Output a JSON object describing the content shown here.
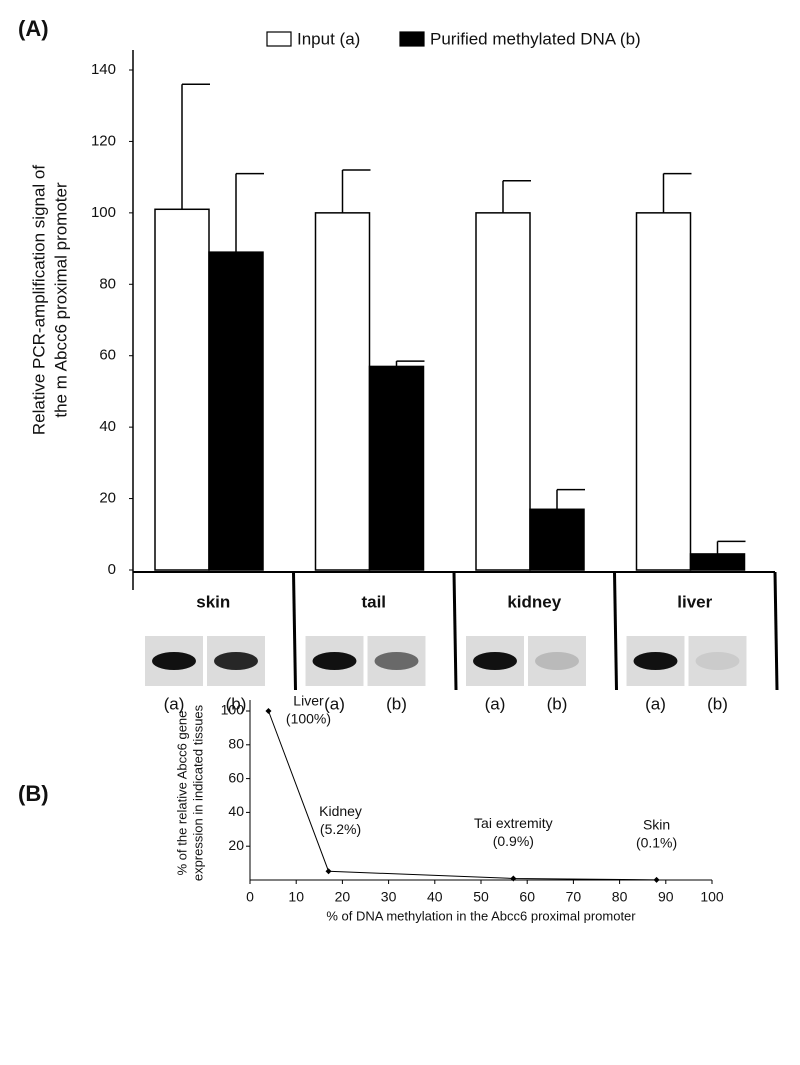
{
  "chart_data": [
    {
      "type": "bar",
      "panel_label": "(A)",
      "ylabel": [
        "Relative PCR-amplification signal of",
        "the m Abcc6 proximal promoter"
      ],
      "categories": [
        "skin",
        "tail",
        "kidney",
        "liver"
      ],
      "series": [
        {
          "name": "Input (a)",
          "color": "#ffffff",
          "values": [
            101,
            100,
            100,
            100
          ],
          "errors": [
            35,
            12,
            9,
            11
          ]
        },
        {
          "name": "Purified methylated DNA (b)",
          "color": "#000000",
          "values": [
            89,
            57,
            17,
            4.5
          ],
          "errors": [
            22,
            1.5,
            5.5,
            3.5
          ]
        }
      ],
      "gel_labels": [
        "(a)",
        "(b)"
      ],
      "ylim": [
        0,
        140
      ],
      "yticks": [
        0,
        20,
        40,
        60,
        80,
        100,
        120,
        140
      ]
    },
    {
      "type": "line",
      "panel_label": "(B)",
      "ylabel": [
        "% of the relative Abcc6 gene",
        "expression in indicated tissues"
      ],
      "xlabel": "% of DNA methylation in the Abcc6 proximal promoter",
      "x": [
        4,
        17,
        57,
        88
      ],
      "values": [
        100,
        5.2,
        0.9,
        0.1
      ],
      "point_names": [
        "Liver",
        "Kidney",
        "Tai extremity",
        "Skin"
      ],
      "value_labels": [
        "(100%)",
        "(5.2%)",
        "(0.9%)",
        "(0.1%)"
      ],
      "color": "#000000",
      "xlim": [
        0,
        100
      ],
      "xticks": [
        0,
        10,
        20,
        30,
        40,
        50,
        60,
        70,
        80,
        90,
        100
      ],
      "ylim": [
        0,
        100
      ],
      "yticks": [
        20,
        40,
        60,
        80,
        100
      ]
    }
  ]
}
